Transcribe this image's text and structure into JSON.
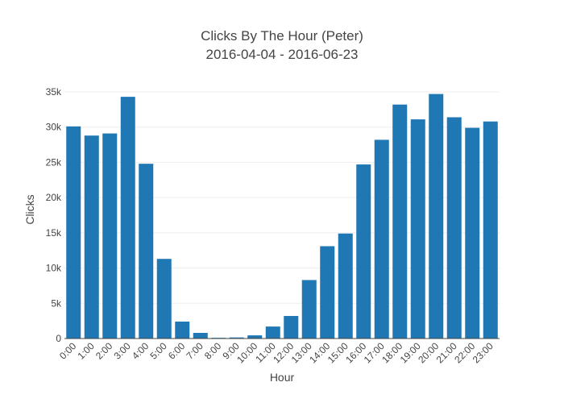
{
  "chart_data": {
    "type": "bar",
    "title": "Clicks By The Hour (Peter)",
    "subtitle": "2016-04-04 - 2016-06-23",
    "xlabel": "Hour",
    "ylabel": "Clicks",
    "ylim": [
      0,
      35000
    ],
    "yticks": [
      0,
      5000,
      10000,
      15000,
      20000,
      25000,
      30000,
      35000
    ],
    "ytick_labels": [
      "0",
      "5k",
      "10k",
      "15k",
      "20k",
      "25k",
      "30k",
      "35k"
    ],
    "grid": true,
    "bar_color": "#1f77b4",
    "categories": [
      "0:00",
      "1:00",
      "2:00",
      "3:00",
      "4:00",
      "5:00",
      "6:00",
      "7:00",
      "8:00",
      "9:00",
      "10:00",
      "11:00",
      "12:00",
      "13:00",
      "14:00",
      "15:00",
      "16:00",
      "17:00",
      "18:00",
      "19:00",
      "20:00",
      "21:00",
      "22:00",
      "23:00"
    ],
    "values": [
      30100,
      28800,
      29100,
      34300,
      24800,
      11300,
      2400,
      800,
      100,
      150,
      450,
      1700,
      3200,
      8300,
      13100,
      14900,
      24700,
      28200,
      33200,
      31100,
      34700,
      31400,
      29900,
      30800
    ]
  }
}
